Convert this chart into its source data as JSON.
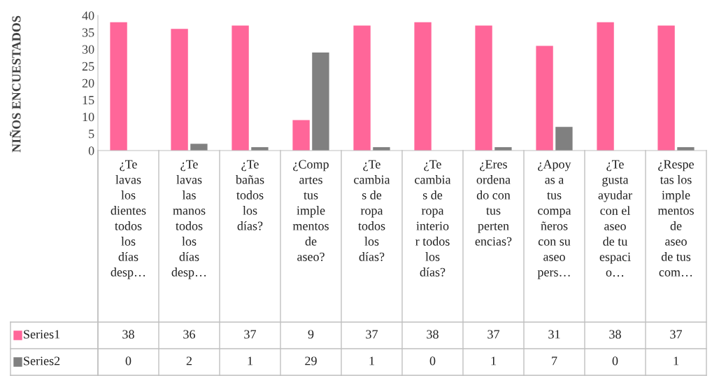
{
  "chart_data": {
    "type": "bar",
    "ylabel": "NIÑOS ENCUESTADOS",
    "categories": [
      "¿Te\nlavas\nlos\ndientes\ntodos\nlos\ndías\ndesp…",
      "¿Te\nlavas\nlas\nmanos\ntodos\nlos\ndías\ndesp…",
      "¿Te\nbañas\ntodos\nlos\ndías?",
      "¿Comp\nartes\ntus\nimple\nmentos\nde\naseo?",
      "¿Te\ncambia\ns de\nropa\ntodos\nlos\ndías?",
      "¿Te\ncambia\ns de\nropa\ninterio\nr todos\nlos\ndías?",
      "¿Eres\nordena\ndo con\ntus\nperten\nencias?",
      "¿Apoy\nas a\ntus\ncompa\nñeros\ncon su\naseo\npers…",
      "¿Te\ngusta\nayudar\ncon el\naseo\nde tu\nespaci\no…",
      "¿Respe\ntas los\nimple\nmentos\nde\naseo\nde tus\ncom…"
    ],
    "series": [
      {
        "name": "Series1",
        "color": "#ff6699",
        "values": [
          38,
          36,
          37,
          9,
          37,
          38,
          37,
          31,
          38,
          37
        ]
      },
      {
        "name": "Series2",
        "color": "#808080",
        "values": [
          0,
          2,
          1,
          29,
          1,
          0,
          1,
          7,
          0,
          1
        ]
      }
    ],
    "ylim": [
      0,
      40
    ],
    "yticks": [
      0,
      5,
      10,
      15,
      20,
      25,
      30,
      35,
      40
    ],
    "data_labels": true,
    "legend": "bottom",
    "grid": false
  }
}
